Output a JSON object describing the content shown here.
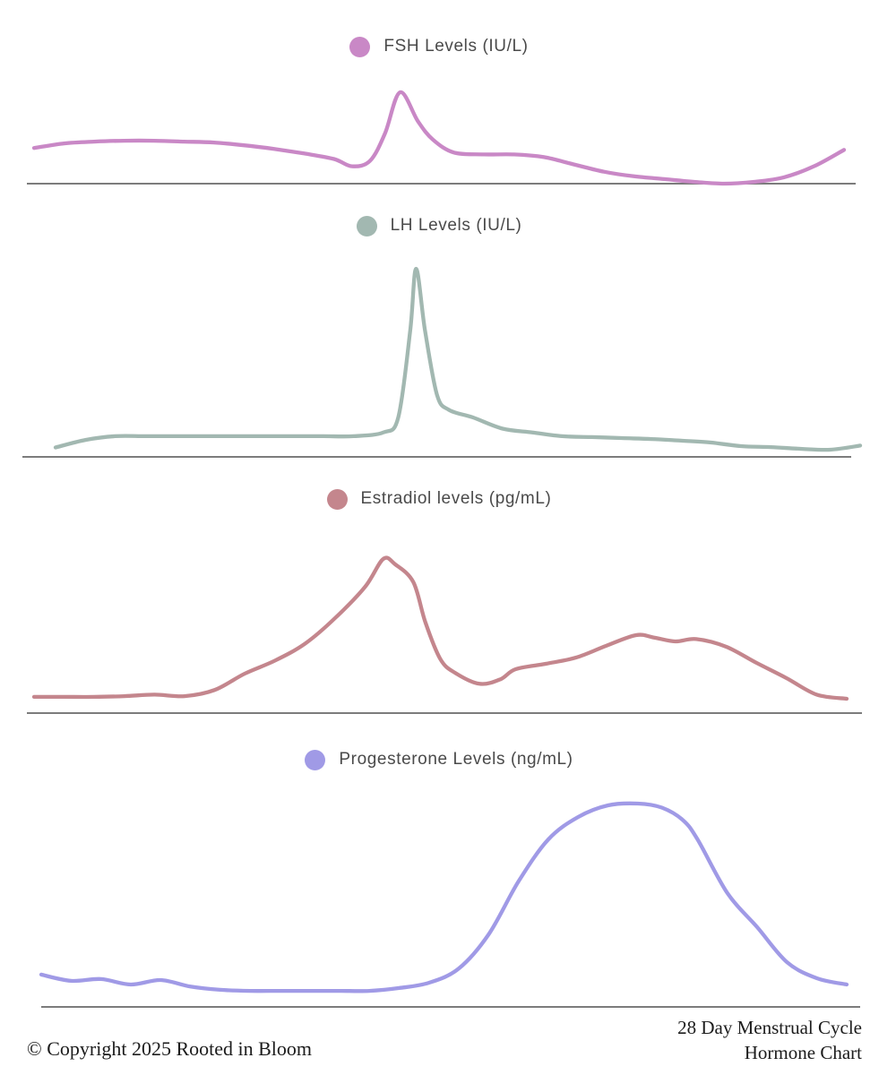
{
  "page": {
    "background": "#ffffff",
    "baseline_color": "#7c7c7c",
    "footer": {
      "copyright": "© Copyright 2025 Rooted in Bloom",
      "title_line1": "28 Day Menstrual Cycle",
      "title_line2": "Hormone Chart"
    }
  },
  "chart_data": [
    {
      "id": "fsh",
      "type": "line",
      "title": "FSH Levels (IU/L)",
      "color": "#c988c6",
      "legend_position": "top-center",
      "grid": false,
      "axes_visible": "x-baseline-only",
      "xlabel": "cycle day (implied, unlabeled)",
      "xlim": [
        1,
        28
      ],
      "ylim": [
        0,
        100
      ],
      "value_scale": "relative, 100 = chart peak (no y ticks shown)",
      "x": [
        1,
        2,
        3,
        4,
        5,
        6,
        7,
        8,
        9,
        10,
        11,
        11.6,
        12.2,
        12.7,
        13.2,
        13.8,
        14.3,
        15,
        16,
        17,
        18,
        19,
        20,
        21,
        22,
        23,
        24,
        25,
        26,
        27,
        28
      ],
      "values": [
        39,
        44,
        46,
        47,
        47,
        46,
        45,
        42,
        38,
        33,
        27,
        19,
        25,
        55,
        100,
        68,
        48,
        34,
        32,
        32,
        29,
        21,
        13,
        8,
        5,
        2,
        0,
        2,
        7,
        19,
        37
      ]
    },
    {
      "id": "lh",
      "type": "line",
      "title": "LH Levels (IU/L)",
      "color": "#a2b8b1",
      "legend_position": "top-center",
      "grid": false,
      "axes_visible": "x-baseline-only",
      "xlabel": "cycle day (implied, unlabeled)",
      "xlim": [
        1,
        28
      ],
      "ylim": [
        0,
        100
      ],
      "value_scale": "relative, 100 = chart peak (no y ticks shown)",
      "x": [
        1,
        2,
        3,
        4,
        5,
        6,
        7,
        8,
        9,
        10,
        11,
        12,
        12.5,
        12.9,
        13.1,
        13.4,
        13.8,
        14.2,
        15,
        16,
        17,
        18,
        19,
        20,
        21,
        22,
        23,
        24,
        25,
        26,
        27,
        28
      ],
      "values": [
        5,
        9,
        11,
        11,
        11,
        11,
        11,
        11,
        11,
        11,
        11,
        13,
        21,
        67,
        100,
        67,
        33,
        25,
        21,
        15,
        13,
        11,
        10.5,
        10,
        9.5,
        8.6,
        7.6,
        5.7,
        5.2,
        4.3,
        3.8,
        6
      ]
    },
    {
      "id": "estradiol",
      "type": "line",
      "title": "Estradiol levels (pg/mL)",
      "color": "#c4868d",
      "legend_position": "top-center",
      "grid": false,
      "axes_visible": "x-baseline-only",
      "xlabel": "cycle day (implied, unlabeled)",
      "xlim": [
        1,
        28
      ],
      "ylim": [
        0,
        100
      ],
      "value_scale": "relative, 100 = chart peak (no y ticks shown)",
      "x": [
        1,
        2,
        3,
        4,
        5,
        6,
        7,
        8,
        9,
        10,
        11,
        12,
        12.6,
        13,
        13.6,
        14,
        14.5,
        15,
        15.8,
        16.5,
        17,
        18,
        19,
        20,
        21,
        21.6,
        22.3,
        23,
        24,
        25,
        26,
        27,
        28
      ],
      "values": [
        10.5,
        10.5,
        10.5,
        11,
        12,
        11,
        15,
        25.6,
        34,
        45,
        61.6,
        82,
        100,
        96.5,
        85,
        59,
        35,
        26,
        19,
        22,
        28.5,
        32,
        36,
        43.6,
        50.6,
        49,
        46.5,
        48,
        43,
        32.6,
        22.7,
        12,
        9.3
      ]
    },
    {
      "id": "progesterone",
      "type": "line",
      "title": "Progesterone Levels (ng/mL)",
      "color": "#a09ae6",
      "legend_position": "top-center",
      "grid": false,
      "axes_visible": "x-baseline-only",
      "xlabel": "cycle day (implied, unlabeled)",
      "xlim": [
        1,
        28
      ],
      "ylim": [
        0,
        100
      ],
      "value_scale": "relative, 100 = chart peak (no y ticks shown)",
      "x": [
        1,
        2,
        3,
        4,
        5,
        6,
        7,
        8,
        9,
        10,
        11,
        12,
        13,
        14,
        15,
        16,
        17,
        18,
        19,
        20,
        21,
        21.8,
        22.5,
        23,
        24,
        25,
        26,
        27,
        28
      ],
      "values": [
        15.9,
        12.8,
        13.7,
        11,
        13.2,
        10,
        8.4,
        7.9,
        7.9,
        7.9,
        7.9,
        7.9,
        9.3,
        11.9,
        18.9,
        35.7,
        61.7,
        82.4,
        93.4,
        99.1,
        100,
        98,
        92,
        82.4,
        56,
        39.2,
        22,
        14.1,
        11
      ]
    }
  ]
}
